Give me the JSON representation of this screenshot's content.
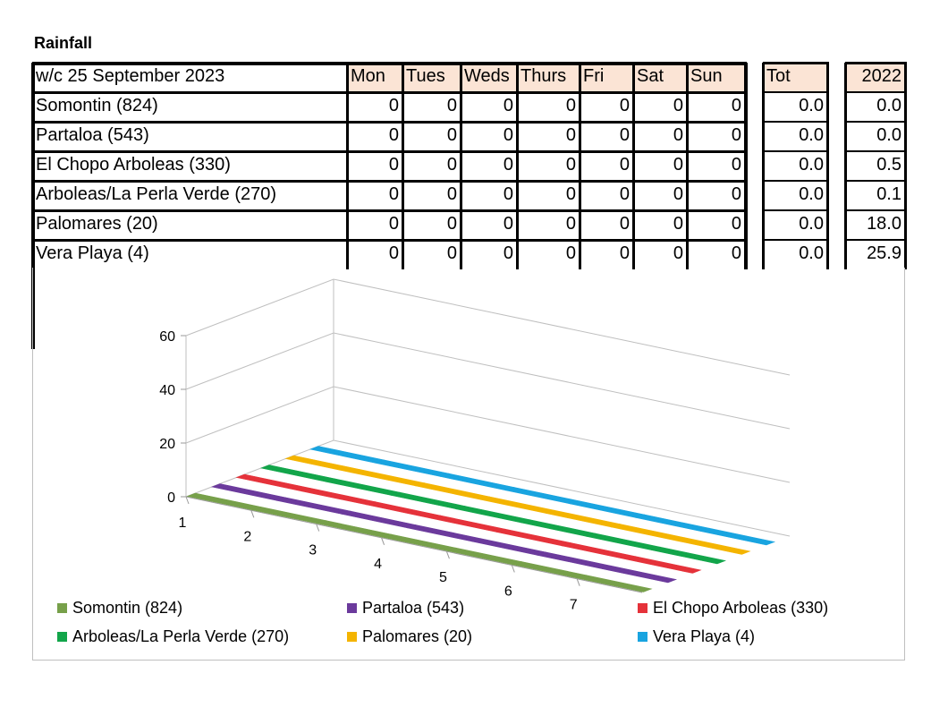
{
  "title": "Rainfall",
  "table": {
    "week_label": "w/c 25 September 2023",
    "day_headers": [
      "Mon",
      "Tues",
      "Weds",
      "Thurs",
      "Fri",
      "Sat",
      "Sun"
    ],
    "total_header": "Tot",
    "prev_year_header": "2022",
    "rows": [
      {
        "name": "Somontin (824)",
        "days": [
          "0",
          "0",
          "0",
          "0",
          "0",
          "0",
          "0"
        ],
        "total": "0.0",
        "prev": "0.0"
      },
      {
        "name": "Partaloa (543)",
        "days": [
          "0",
          "0",
          "0",
          "0",
          "0",
          "0",
          "0"
        ],
        "total": "0.0",
        "prev": "0.0"
      },
      {
        "name": "El Chopo Arboleas (330)",
        "days": [
          "0",
          "0",
          "0",
          "0",
          "0",
          "0",
          "0"
        ],
        "total": "0.0",
        "prev": "0.5"
      },
      {
        "name": "Arboleas/La Perla Verde (270)",
        "days": [
          "0",
          "0",
          "0",
          "0",
          "0",
          "0",
          "0"
        ],
        "total": "0.0",
        "prev": "0.1"
      },
      {
        "name": "Palomares (20)",
        "days": [
          "0",
          "0",
          "0",
          "0",
          "0",
          "0",
          "0"
        ],
        "total": "0.0",
        "prev": "18.0"
      },
      {
        "name": "Vera Playa (4)",
        "days": [
          "0",
          "0",
          "0",
          "0",
          "0",
          "0",
          "0"
        ],
        "total": "0.0",
        "prev": "25.9"
      }
    ]
  },
  "chart_data": {
    "type": "bar",
    "subtype": "3d-series",
    "x": [
      1,
      2,
      3,
      4,
      5,
      6,
      7
    ],
    "x_tick_labels": [
      "1",
      "2",
      "3",
      "4",
      "5",
      "6",
      "7"
    ],
    "y_ticks": [
      0,
      20,
      40,
      60
    ],
    "y_tick_labels": [
      "0",
      "20",
      "40",
      "60"
    ],
    "ylim": [
      0,
      60
    ],
    "legend_position": "bottom",
    "series": [
      {
        "name": "Somontin (824)",
        "color": "#77a04a",
        "values": [
          0,
          0,
          0,
          0,
          0,
          0,
          0
        ]
      },
      {
        "name": "Partaloa (543)",
        "color": "#6b3a9c",
        "values": [
          0,
          0,
          0,
          0,
          0,
          0,
          0
        ]
      },
      {
        "name": "El Chopo Arboleas (330)",
        "color": "#e5323a",
        "values": [
          0,
          0,
          0,
          0,
          0,
          0,
          0
        ]
      },
      {
        "name": "Arboleas/La Perla Verde (270)",
        "color": "#12a54a",
        "values": [
          0,
          0,
          0,
          0,
          0,
          0,
          0
        ]
      },
      {
        "name": "Palomares (20)",
        "color": "#f4b400",
        "values": [
          0,
          0,
          0,
          0,
          0,
          0,
          0
        ]
      },
      {
        "name": "Vera Playa (4)",
        "color": "#19a4e0",
        "values": [
          0,
          0,
          0,
          0,
          0,
          0,
          0
        ]
      }
    ]
  }
}
